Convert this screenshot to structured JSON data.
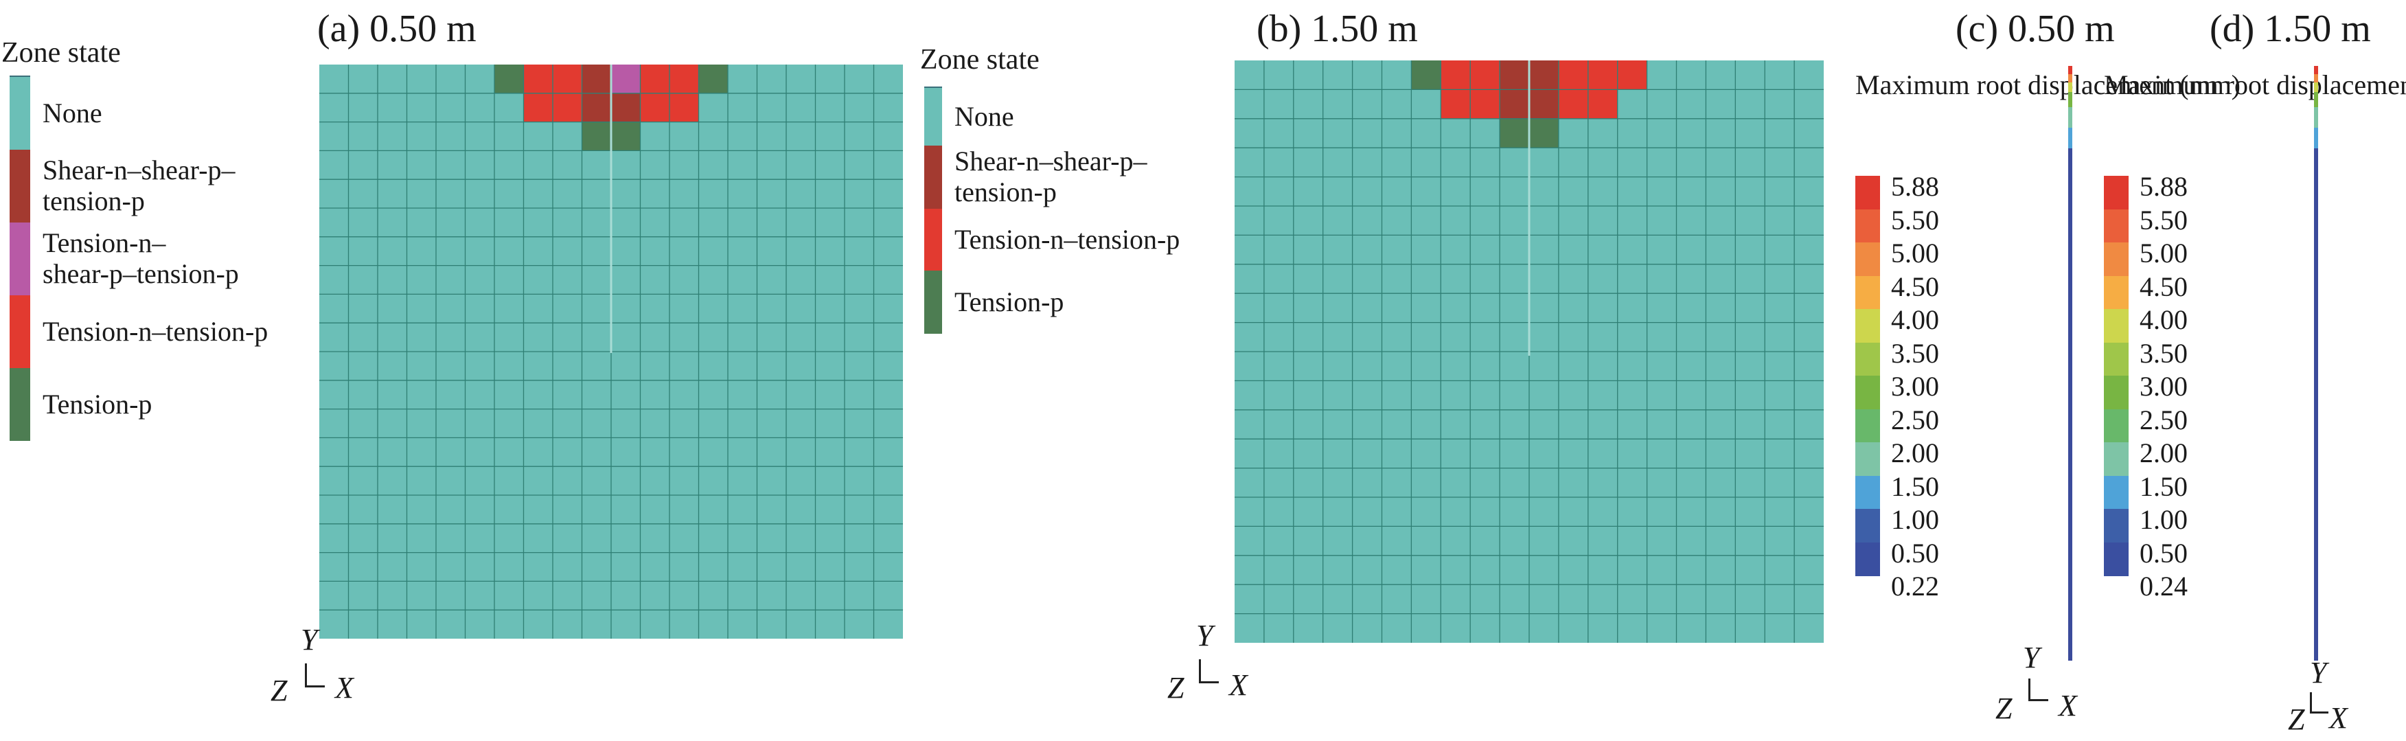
{
  "panels": {
    "a": {
      "title": "(a) 0.50 m"
    },
    "b": {
      "title": "(b) 1.50 m"
    },
    "c": {
      "title": "(c) 0.50 m"
    },
    "d": {
      "title": "(d) 1.50 m"
    }
  },
  "zone_legend_a": {
    "title": "Zone state",
    "items": [
      {
        "label": "None",
        "color": "#6bbfb7"
      },
      {
        "label": "Shear-n–shear-p–\ntension-p",
        "color": "#a33a30"
      },
      {
        "label": "Tension-n–\nshear-p–tension-p",
        "color": "#b85aa6"
      },
      {
        "label": "Tension-n–tension-p",
        "color": "#e23a30"
      },
      {
        "label": "Tension-p",
        "color": "#4d7d52"
      }
    ]
  },
  "zone_legend_b": {
    "title": "Zone state",
    "items": [
      {
        "label": "None",
        "color": "#6bbfb7"
      },
      {
        "label": "Shear-n–shear-p–\ntension-p",
        "color": "#a33a30"
      },
      {
        "label": "Tension-n–tension-p",
        "color": "#e23a30"
      },
      {
        "label": "Tension-p",
        "color": "#4d7d52"
      }
    ]
  },
  "colorbar_c": {
    "title": "Maximum root\ndisplacement\n(mm)",
    "labels": [
      "5.88",
      "5.50",
      "5.00",
      "4.50",
      "4.00",
      "3.50",
      "3.00",
      "2.50",
      "2.00",
      "1.50",
      "1.00",
      "0.50",
      "0.22"
    ]
  },
  "colorbar_d": {
    "title": "Maximum root\ndisplacement\n(mm)",
    "labels": [
      "5.88",
      "5.50",
      "5.00",
      "4.50",
      "4.00",
      "3.50",
      "3.00",
      "2.50",
      "2.00",
      "1.50",
      "1.00",
      "0.50",
      "0.24"
    ]
  },
  "colorbar_colors": [
    "#e0392e",
    "#ea5f3a",
    "#f08a42",
    "#f6ad44",
    "#cdd64d",
    "#9fc64a",
    "#78b543",
    "#68b86a",
    "#7ec4a6",
    "#4fa3d8",
    "#3d5fa8",
    "#3a4fa0"
  ],
  "axes": {
    "y": "Y",
    "z": "Z",
    "x": "X"
  },
  "colors": {
    "mesh": "#6bbfb7",
    "gridline": "#2f7f74",
    "root_line": "#3b4b9b"
  }
}
